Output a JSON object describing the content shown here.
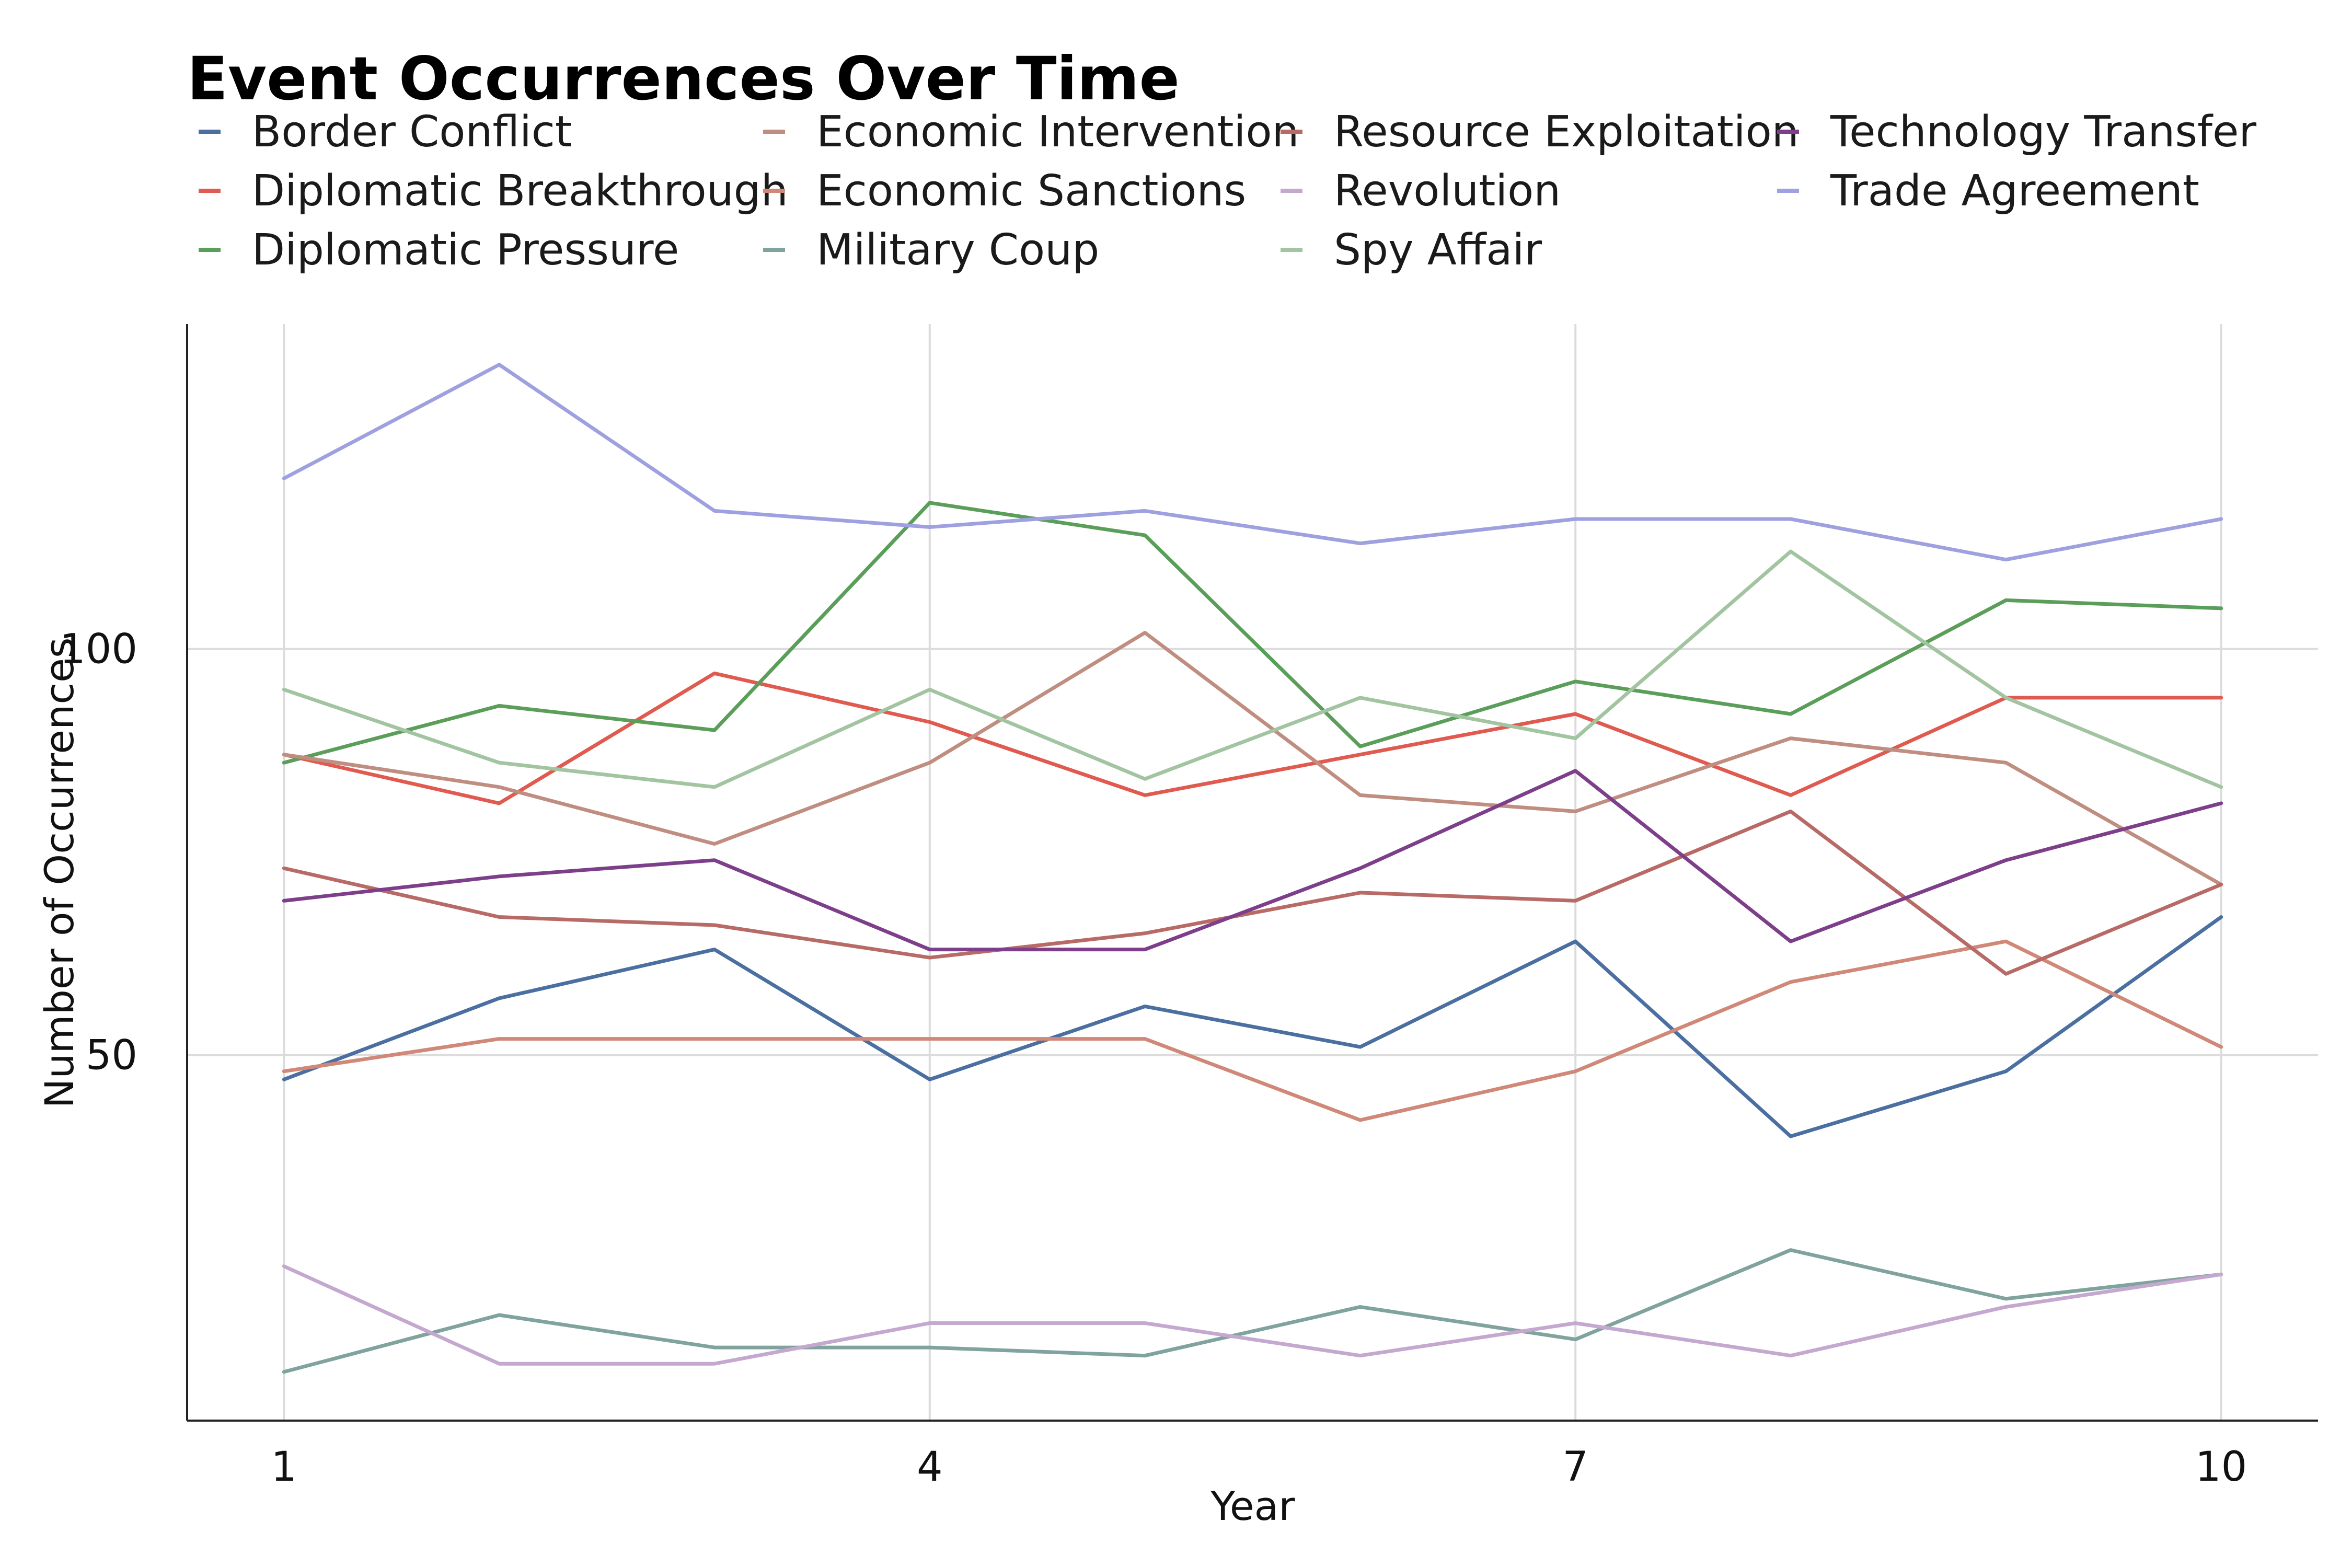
{
  "chart_data": {
    "type": "line",
    "title": "Event Occurrences Over Time",
    "xlabel": "Year",
    "ylabel": "Number of Occurrences",
    "x": [
      1,
      2,
      3,
      4,
      5,
      6,
      7,
      8,
      9,
      10
    ],
    "xticks": [
      "1",
      "4",
      "7",
      "10"
    ],
    "yticks": [
      "50",
      "100"
    ],
    "xlim": [
      0.55,
      10.45
    ],
    "ylim": [
      5,
      140
    ],
    "grid": true,
    "legend_position": "top",
    "series": [
      {
        "name": "Border Conflict",
        "color": "#4a6fa0",
        "values": [
          47,
          57,
          63,
          47,
          56,
          51,
          64,
          40,
          48,
          67
        ]
      },
      {
        "name": "Diplomatic Breakthrough",
        "color": "#e05a4f",
        "values": [
          87,
          81,
          97,
          91,
          82,
          87,
          92,
          82,
          94,
          94
        ]
      },
      {
        "name": "Diplomatic Pressure",
        "color": "#5a9e5a",
        "values": [
          86,
          93,
          90,
          118,
          114,
          88,
          96,
          92,
          106,
          105
        ]
      },
      {
        "name": "Economic Intervention",
        "color": "#c08e80",
        "values": [
          87,
          83,
          76,
          86,
          102,
          82,
          80,
          89,
          86,
          71
        ]
      },
      {
        "name": "Economic Sanctions",
        "color": "#d08878",
        "values": [
          48,
          52,
          52,
          52,
          52,
          42,
          48,
          59,
          64,
          51
        ]
      },
      {
        "name": "Military Coup",
        "color": "#80a39d",
        "values": [
          11,
          18,
          14,
          14,
          13,
          19,
          15,
          26,
          20,
          23
        ]
      },
      {
        "name": "Resource Exploitation",
        "color": "#b86a66",
        "values": [
          73,
          67,
          66,
          62,
          65,
          70,
          69,
          80,
          60,
          71
        ]
      },
      {
        "name": "Revolution",
        "color": "#c4a8d0",
        "values": [
          24,
          12,
          12,
          17,
          17,
          13,
          17,
          13,
          19,
          23
        ]
      },
      {
        "name": "Spy Affair",
        "color": "#a3c4a1",
        "values": [
          95,
          86,
          83,
          95,
          84,
          94,
          89,
          112,
          94,
          83
        ]
      },
      {
        "name": "Technology Transfer",
        "color": "#7e3f8a",
        "values": [
          69,
          72,
          74,
          63,
          63,
          73,
          85,
          64,
          74,
          81
        ]
      },
      {
        "name": "Trade Agreement",
        "color": "#9ea0e0",
        "values": [
          121,
          135,
          117,
          115,
          117,
          113,
          116,
          116,
          111,
          116
        ]
      }
    ]
  }
}
